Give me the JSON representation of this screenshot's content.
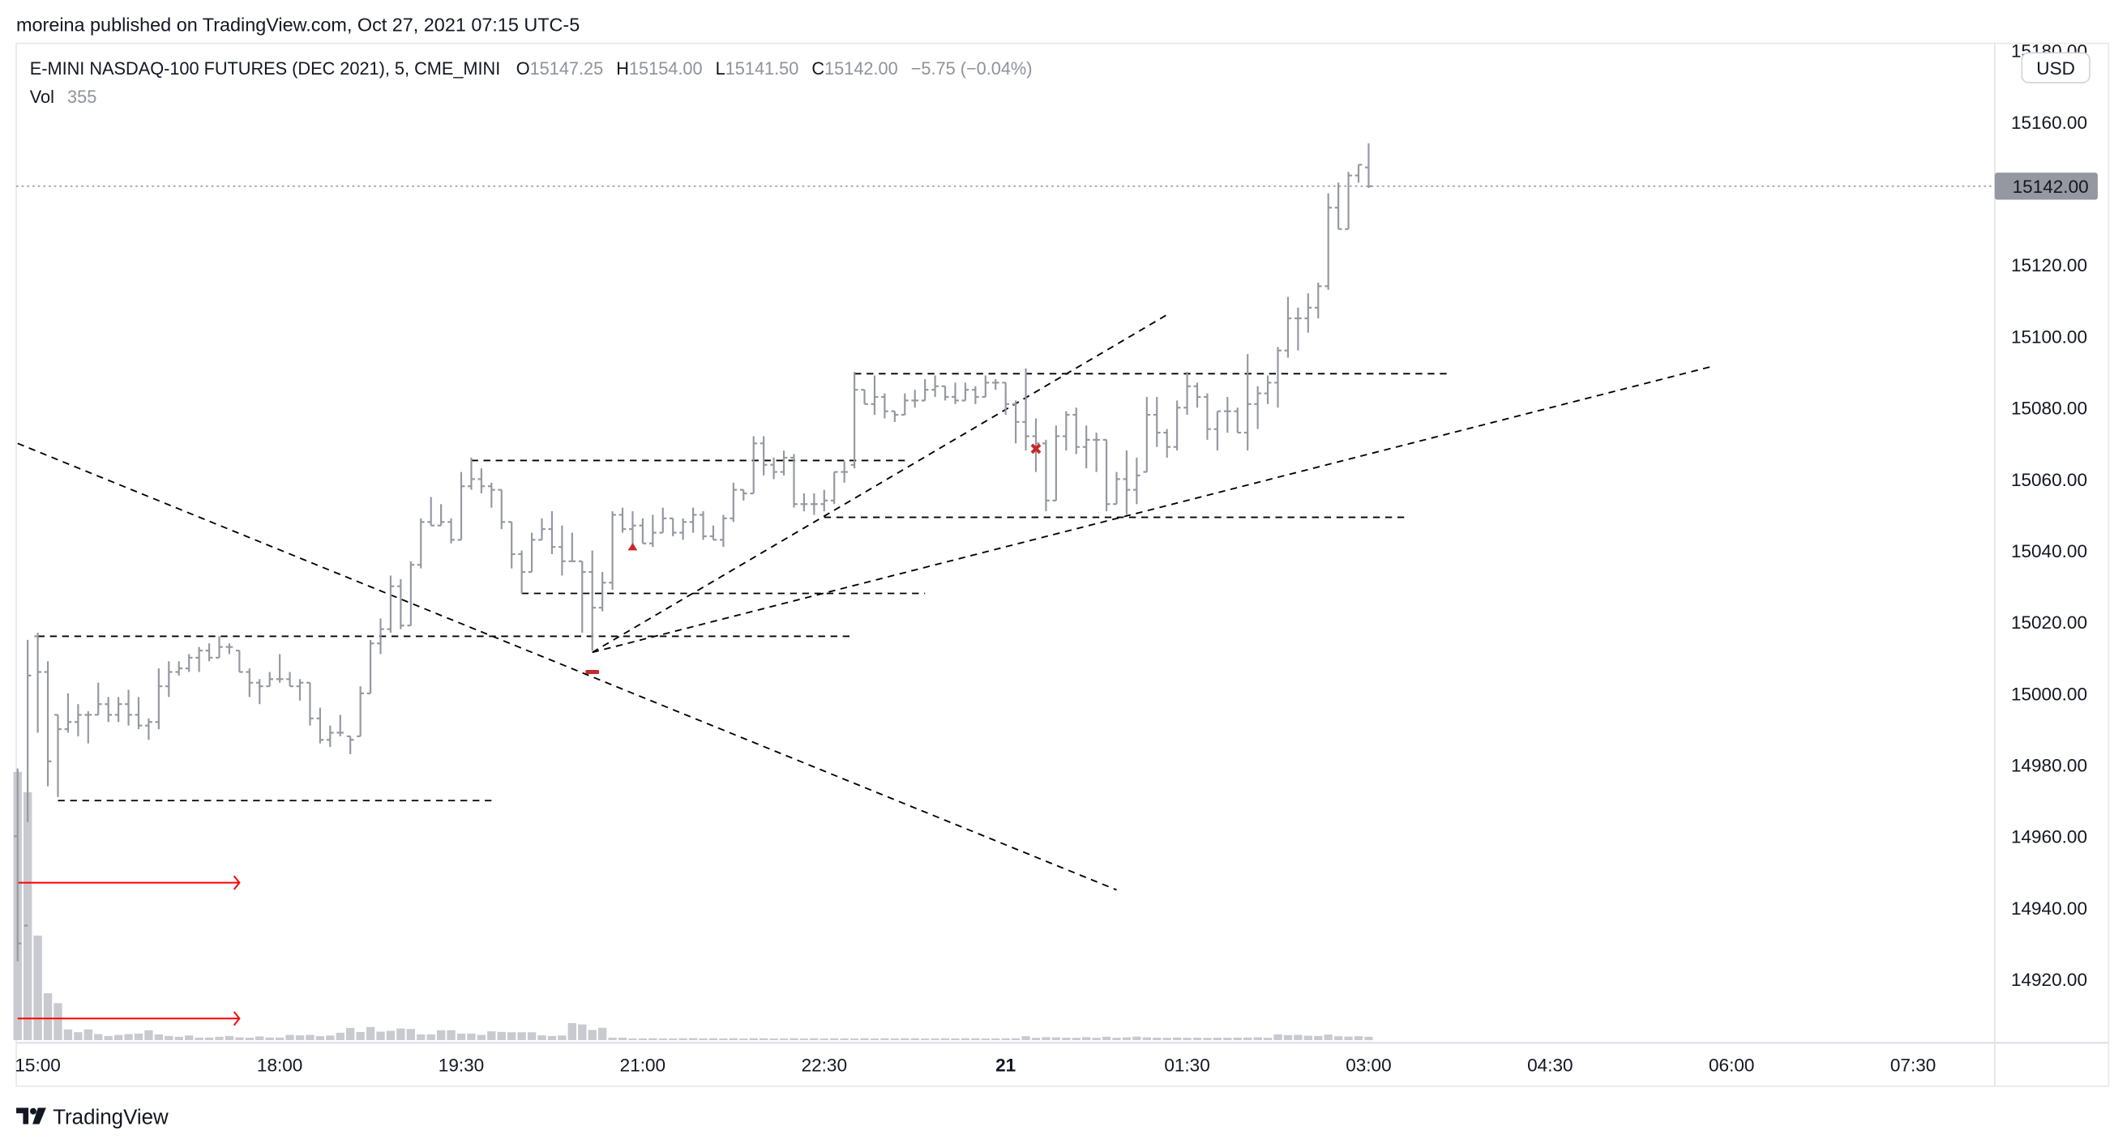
{
  "publish_line": "moreina published on TradingView.com, Oct 27, 2021 07:15 UTC-5",
  "legend": {
    "symbol": "E-MINI NASDAQ-100 FUTURES (DEC 2021), 5, CME_MINI",
    "o_label": "O",
    "o_value": "15147.25",
    "h_label": "H",
    "h_value": "15154.00",
    "l_label": "L",
    "l_value": "15141.50",
    "c_label": "C",
    "c_value": "15142.00",
    "change": "−5.75 (−0.04%)",
    "vol_label": "Vol",
    "vol_value": "355"
  },
  "currency_badge": "USD",
  "current_price_label": "15142.00",
  "logo_text": "TradingView",
  "colors": {
    "bar": "#9598a1",
    "volume": "#c9cad0",
    "drawing": "#000000",
    "arrow": "#ff0000",
    "marker": "#c62828",
    "last_price_box": "#9598a1"
  },
  "chart_data": {
    "type": "ohlc-bar",
    "interval_minutes": 5,
    "y_ticks": [
      "15180.00",
      "15160.00",
      "15120.00",
      "15100.00",
      "15080.00",
      "15060.00",
      "15040.00",
      "15020.00",
      "15000.00",
      "14980.00",
      "14960.00",
      "14940.00",
      "14920.00"
    ],
    "x_ticks": [
      {
        "label": "15:00",
        "time": "15:00",
        "bold": false
      },
      {
        "label": "18:00",
        "time": "18:00",
        "bold": false
      },
      {
        "label": "19:30",
        "time": "19:30",
        "bold": false
      },
      {
        "label": "21:00",
        "time": "21:00",
        "bold": false
      },
      {
        "label": "22:30",
        "time": "22:30",
        "bold": false
      },
      {
        "label": "21",
        "time": "21 00:00",
        "bold": true
      },
      {
        "label": "01:30",
        "time": "21 01:30",
        "bold": false
      },
      {
        "label": "03:00",
        "time": "21 03:00",
        "bold": false
      },
      {
        "label": "04:30",
        "time": "21 04:30",
        "bold": false
      },
      {
        "label": "06:00",
        "time": "21 06:00",
        "bold": false
      },
      {
        "label": "07:30",
        "time": "21 07:30",
        "bold": false
      }
    ],
    "last_price": 15142.0,
    "bars": [
      [
        14960,
        14979,
        14925,
        14930
      ],
      [
        14935,
        15015,
        14964,
        15005
      ],
      [
        15016,
        15017,
        14989,
        15006
      ],
      [
        15006,
        15009,
        14974,
        14981
      ],
      [
        14994,
        14994,
        14971,
        14990
      ],
      [
        14990,
        15000,
        14989,
        14992
      ],
      [
        14992,
        14997,
        14988,
        14994
      ],
      [
        14994,
        14995,
        14986,
        14994
      ],
      [
        14994,
        15003,
        14994,
        14997
      ],
      [
        14997,
        14999,
        14992,
        14994
      ],
      [
        14994,
        14999,
        14992,
        14997
      ],
      [
        14997,
        15001,
        14991,
        14994
      ],
      [
        14994,
        14999,
        14990,
        14991
      ],
      [
        14991,
        14993,
        14987,
        14992
      ],
      [
        14992,
        15007,
        14990,
        15002
      ],
      [
        15002,
        15009,
        14999,
        15006
      ],
      [
        15006,
        15009,
        15005,
        15007
      ],
      [
        15007,
        15011,
        15006,
        15010
      ],
      [
        15010,
        15013,
        15006,
        15012
      ],
      [
        15012,
        15014,
        15009,
        15010
      ],
      [
        15010,
        15016,
        15010,
        15013
      ],
      [
        15013,
        15014,
        15011,
        15013
      ],
      [
        15012,
        15012,
        15006,
        15006
      ],
      [
        15006,
        15007,
        14999,
        15003
      ],
      [
        15003,
        15004,
        14997,
        15002
      ],
      [
        15002,
        15006,
        15002,
        15004
      ],
      [
        15004,
        15011,
        15003,
        15004
      ],
      [
        15004,
        15006,
        15002,
        15002
      ],
      [
        15002,
        15004,
        14998,
        15003
      ],
      [
        15003,
        15003,
        14991,
        14993
      ],
      [
        14993,
        14996,
        14986,
        14987
      ],
      [
        14987,
        14991,
        14985,
        14989
      ],
      [
        14989,
        14994,
        14988,
        14989
      ],
      [
        14988,
        14988,
        14983,
        14987
      ],
      [
        14988,
        15002,
        14988,
        15000
      ],
      [
        15000,
        15015,
        15000,
        15014
      ],
      [
        15014,
        15021,
        15011,
        15018
      ],
      [
        15018,
        15033,
        15017,
        15030
      ],
      [
        15030,
        15032,
        15018,
        15019
      ],
      [
        15019,
        15037,
        15019,
        15036
      ],
      [
        15036,
        15049,
        15035,
        15048
      ],
      [
        15048,
        15055,
        15047,
        15047
      ],
      [
        15047,
        15053,
        15047,
        15048
      ],
      [
        15048,
        15049,
        15042,
        15043
      ],
      [
        15043,
        15062,
        15043,
        15058
      ],
      [
        15058,
        15066,
        15057,
        15060
      ],
      [
        15060,
        15063,
        15056,
        15058
      ],
      [
        15058,
        15059,
        15052,
        15057
      ],
      [
        15057,
        15057,
        15046,
        15048
      ],
      [
        15048,
        15048,
        15035,
        15039
      ],
      [
        15039,
        15040,
        15028,
        15034
      ],
      [
        15034,
        15045,
        15034,
        15043
      ],
      [
        15043,
        15049,
        15043,
        15046
      ],
      [
        15046,
        15051,
        15039,
        15041
      ],
      [
        15041,
        15047,
        15033,
        15037
      ],
      [
        15037,
        15045,
        15037,
        15037
      ],
      [
        15037,
        15037,
        15017,
        15034
      ],
      [
        15034,
        15040,
        15012,
        15024
      ],
      [
        15024,
        15034,
        15023,
        15031
      ],
      [
        15031,
        15051,
        15029,
        15050
      ],
      [
        15050,
        15052,
        15045,
        15046
      ],
      [
        15046,
        15051,
        15041,
        15047
      ],
      [
        15047,
        15049,
        15042,
        15042
      ],
      [
        15042,
        15050,
        15041,
        15045
      ],
      [
        15045,
        15052,
        15045,
        15049
      ],
      [
        15049,
        15049,
        15044,
        15045
      ],
      [
        15045,
        15049,
        15043,
        15048
      ],
      [
        15048,
        15052,
        15045,
        15050
      ],
      [
        15050,
        15051,
        15043,
        15044
      ],
      [
        15044,
        15047,
        15043,
        15043
      ],
      [
        15043,
        15050,
        15041,
        15049
      ],
      [
        15049,
        15059,
        15048,
        15057
      ],
      [
        15057,
        15057,
        15054,
        15056
      ],
      [
        15056,
        15072,
        15056,
        15070
      ],
      [
        15070,
        15072,
        15061,
        15064
      ],
      [
        15064,
        15066,
        15060,
        15062
      ],
      [
        15062,
        15068,
        15061,
        15066
      ],
      [
        15066,
        15067,
        15052,
        15053
      ],
      [
        15053,
        15056,
        15051,
        15053
      ],
      [
        15053,
        15056,
        15050,
        15053
      ],
      [
        15053,
        15057,
        15051,
        15054
      ],
      [
        15054,
        15062,
        15053,
        15062
      ],
      [
        15062,
        15065,
        15059,
        15062
      ],
      [
        15064,
        15090,
        15063,
        15085
      ],
      [
        15085,
        15085,
        15081,
        15081
      ],
      [
        15081,
        15089,
        15078,
        15083
      ],
      [
        15083,
        15084,
        15077,
        15079
      ],
      [
        15079,
        15079,
        15076,
        15078
      ],
      [
        15078,
        15084,
        15078,
        15082
      ],
      [
        15082,
        15085,
        15080,
        15082
      ],
      [
        15082,
        15088,
        15082,
        15085
      ],
      [
        15085,
        15089,
        15083,
        15086
      ],
      [
        15086,
        15086,
        15082,
        15083
      ],
      [
        15083,
        15087,
        15081,
        15082
      ],
      [
        15082,
        15087,
        15082,
        15085
      ],
      [
        15085,
        15086,
        15081,
        15083
      ],
      [
        15083,
        15089,
        15083,
        15087
      ],
      [
        15087,
        15088,
        15085,
        15087
      ],
      [
        15087,
        15087,
        15078,
        15081
      ],
      [
        15081,
        15082,
        15070,
        15076
      ],
      [
        15076,
        15091,
        15068,
        15072
      ],
      [
        15072,
        15077,
        15062,
        15070
      ],
      [
        15070,
        15071,
        15051,
        15054
      ],
      [
        15054,
        15075,
        15054,
        15072
      ],
      [
        15072,
        15079,
        15068,
        15078
      ],
      [
        15078,
        15080,
        15067,
        15069
      ],
      [
        15069,
        15075,
        15063,
        15071
      ],
      [
        15071,
        15073,
        15062,
        15071
      ],
      [
        15071,
        15071,
        15051,
        15053
      ],
      [
        15053,
        15062,
        15053,
        15060
      ],
      [
        15060,
        15068,
        15050,
        15057
      ],
      [
        15057,
        15066,
        15053,
        15061
      ],
      [
        15062,
        15083,
        15062,
        15078
      ],
      [
        15078,
        15083,
        15069,
        15073
      ],
      [
        15073,
        15074,
        15066,
        15069
      ],
      [
        15069,
        15082,
        15068,
        15080
      ],
      [
        15080,
        15090,
        15078,
        15086
      ],
      [
        15086,
        15087,
        15080,
        15083
      ],
      [
        15083,
        15084,
        15071,
        15074
      ],
      [
        15074,
        15079,
        15068,
        15079
      ],
      [
        15079,
        15083,
        15073,
        15079
      ],
      [
        15079,
        15080,
        15073,
        15073
      ],
      [
        15073,
        15095,
        15068,
        15081
      ],
      [
        15081,
        15086,
        15074,
        15084
      ],
      [
        15084,
        15089,
        15081,
        15087
      ],
      [
        15087,
        15097,
        15080,
        15096
      ],
      [
        15096,
        15111,
        15094,
        15105
      ],
      [
        15105,
        15108,
        15096,
        15105
      ],
      [
        15105,
        15112,
        15101,
        15108
      ],
      [
        15108,
        15115,
        15105,
        15114
      ],
      [
        15114,
        15140,
        15113,
        15136
      ],
      [
        15136,
        15143,
        15130,
        15130
      ],
      [
        15130,
        15146,
        15130,
        15145
      ],
      [
        15145,
        15148,
        15143,
        15148
      ],
      [
        15147.25,
        15154,
        15141.5,
        15142
      ]
    ],
    "volume": [
      29000,
      26800,
      11300,
      5070,
      4000,
      1160,
      860,
      1160,
      650,
      450,
      560,
      650,
      710,
      1070,
      620,
      450,
      360,
      500,
      270,
      280,
      360,
      450,
      300,
      260,
      400,
      280,
      280,
      560,
      520,
      560,
      430,
      500,
      800,
      1320,
      880,
      1420,
      920,
      1000,
      1260,
      1200,
      620,
      620,
      1070,
      1070,
      710,
      710,
      560,
      950,
      890,
      850,
      850,
      850,
      520,
      450,
      500,
      1840,
      1700,
      1100,
      1340,
      270,
      270,
      180,
      180,
      200,
      180,
      180,
      200,
      220,
      180,
      200,
      180,
      200,
      180,
      200,
      200,
      180,
      180,
      200,
      180,
      200,
      180,
      200,
      180,
      180,
      200,
      180,
      200,
      180,
      200,
      200,
      180,
      180,
      200,
      180,
      200,
      200,
      180,
      180,
      200,
      200,
      420,
      250,
      320,
      300,
      260,
      240,
      320,
      250,
      360,
      250,
      300,
      380,
      300,
      260,
      250,
      280,
      250,
      260,
      240,
      260,
      250,
      260,
      280,
      300,
      250,
      620,
      540,
      560,
      480,
      450,
      600,
      420,
      380,
      420,
      355
    ],
    "horizontal_segments": [
      {
        "price": 15016,
        "from": "15:00",
        "to": "22:45"
      },
      {
        "price": 14970,
        "from": "15:10",
        "to": "19:45"
      },
      {
        "price": 15065.2,
        "from": "19:35",
        "to": "23:10"
      },
      {
        "price": 15028,
        "from": "20:00",
        "to": "23:20"
      },
      {
        "price": 15089.5,
        "from": "22:45",
        "to": "21 03:40"
      },
      {
        "price": 15049.3,
        "from": "22:30",
        "to": "21 03:20"
      }
    ],
    "trendlines": [
      {
        "from": [
          "14:50",
          15070
        ],
        "to": [
          "21 00:55",
          14945
        ]
      },
      {
        "from": [
          "20:35",
          15011.5
        ],
        "to": [
          "21 01:20",
          15106
        ]
      },
      {
        "from": [
          "20:35",
          15011.5
        ],
        "to": [
          "21 05:50",
          15091.5
        ]
      }
    ],
    "arrows": [
      {
        "price": 14947,
        "from": "14:50",
        "to": "17:40"
      },
      {
        "price": 14909,
        "from": "14:50",
        "to": "17:40"
      }
    ],
    "markers": [
      {
        "type": "triangle-up",
        "time": "20:55",
        "price": 15041
      },
      {
        "type": "dash",
        "time": "20:35",
        "price": 15006
      },
      {
        "type": "cross",
        "time": "21 00:15",
        "price": 15068.5
      }
    ]
  }
}
